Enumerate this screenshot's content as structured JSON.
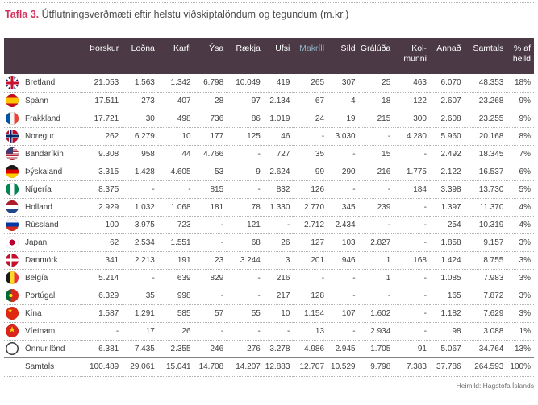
{
  "title": {
    "prefix": "Tafla 3.",
    "text": " Útflutningsverðmæti eftir helstu viðskiptalöndum og tegundum (m.kr.)"
  },
  "source": "Heimild: Hagstofa Íslands",
  "colors": {
    "header_bg": "#4b3a45",
    "title_accent": "#d4325c",
    "makrill_highlight": "#8db3c7",
    "body_text": "#414042"
  },
  "table": {
    "columns": [
      {
        "label": "",
        "id": "country"
      },
      {
        "label": "Þorskur",
        "id": "thorskur"
      },
      {
        "label": "Loðna",
        "id": "lodna"
      },
      {
        "label": "Karfi",
        "id": "karfi"
      },
      {
        "label": "Ýsa",
        "id": "ysa"
      },
      {
        "label": "Rækja",
        "id": "raekja"
      },
      {
        "label": "Ufsi",
        "id": "ufsi"
      },
      {
        "label": "Makríll",
        "id": "makrill",
        "highlight": true
      },
      {
        "label": "Síld",
        "id": "sild"
      },
      {
        "label": "Grálúða",
        "id": "graluda"
      },
      {
        "label": "Kol-\nmunni",
        "id": "kolmunni"
      },
      {
        "label": "Annað",
        "id": "annad"
      },
      {
        "label": "Samtals",
        "id": "samtals"
      },
      {
        "label": "% af\nheild",
        "id": "pct-af-heild"
      }
    ],
    "rows": [
      {
        "country": "Bretland",
        "flag": "gb",
        "values": [
          "21.053",
          "1.563",
          "1.342",
          "6.798",
          "10.049",
          "419",
          "265",
          "307",
          "25",
          "463",
          "6.070",
          "48.353",
          "18%"
        ]
      },
      {
        "country": "Spánn",
        "flag": "es",
        "values": [
          "17.511",
          "273",
          "407",
          "28",
          "97",
          "2.134",
          "67",
          "4",
          "18",
          "122",
          "2.607",
          "23.268",
          "9%"
        ]
      },
      {
        "country": "Frakkland",
        "flag": "fr",
        "values": [
          "17.721",
          "30",
          "498",
          "736",
          "86",
          "1.019",
          "24",
          "19",
          "215",
          "300",
          "2.608",
          "23.255",
          "9%"
        ]
      },
      {
        "country": "Noregur",
        "flag": "no",
        "values": [
          "262",
          "6.279",
          "10",
          "177",
          "125",
          "46",
          "-",
          "3.030",
          "-",
          "4.280",
          "5.960",
          "20.168",
          "8%"
        ]
      },
      {
        "country": "Bandaríkin",
        "flag": "us",
        "values": [
          "9.308",
          "958",
          "44",
          "4.766",
          "-",
          "727",
          "35",
          "-",
          "15",
          "-",
          "2.492",
          "18.345",
          "7%"
        ]
      },
      {
        "country": "Þýskaland",
        "flag": "de",
        "values": [
          "3.315",
          "1.428",
          "4.605",
          "53",
          "9",
          "2.624",
          "99",
          "290",
          "216",
          "1.775",
          "2.122",
          "16.537",
          "6%"
        ]
      },
      {
        "country": "Nígería",
        "flag": "ng",
        "values": [
          "8.375",
          "-",
          "-",
          "815",
          "-",
          "832",
          "126",
          "-",
          "-",
          "184",
          "3.398",
          "13.730",
          "5%"
        ]
      },
      {
        "country": "Holland",
        "flag": "nl",
        "values": [
          "2.929",
          "1.032",
          "1.068",
          "181",
          "78",
          "1.330",
          "2.770",
          "345",
          "239",
          "-",
          "1.397",
          "11.370",
          "4%"
        ]
      },
      {
        "country": "Rússland",
        "flag": "ru",
        "values": [
          "100",
          "3.975",
          "723",
          "-",
          "121",
          "-",
          "2.712",
          "2.434",
          "-",
          "-",
          "254",
          "10.319",
          "4%"
        ]
      },
      {
        "country": "Japan",
        "flag": "jp",
        "values": [
          "62",
          "2.534",
          "1.551",
          "-",
          "68",
          "26",
          "127",
          "103",
          "2.827",
          "-",
          "1.858",
          "9.157",
          "3%"
        ]
      },
      {
        "country": "Danmörk",
        "flag": "dk",
        "values": [
          "341",
          "2.213",
          "191",
          "23",
          "3.244",
          "3",
          "201",
          "946",
          "1",
          "168",
          "1.424",
          "8.755",
          "3%"
        ]
      },
      {
        "country": "Belgía",
        "flag": "be",
        "values": [
          "5.214",
          "-",
          "639",
          "829",
          "-",
          "216",
          "-",
          "-",
          "1",
          "-",
          "1.085",
          "7.983",
          "3%"
        ]
      },
      {
        "country": "Portúgal",
        "flag": "pt",
        "values": [
          "6.329",
          "35",
          "998",
          "-",
          "-",
          "217",
          "128",
          "-",
          "-",
          "-",
          "165",
          "7.872",
          "3%"
        ]
      },
      {
        "country": "Kína",
        "flag": "cn",
        "values": [
          "1.587",
          "1.291",
          "585",
          "57",
          "55",
          "10",
          "1.154",
          "107",
          "1.602",
          "-",
          "1.182",
          "7.629",
          "3%"
        ]
      },
      {
        "country": "Víetnam",
        "flag": "vn",
        "values": [
          "-",
          "17",
          "26",
          "-",
          "-",
          "-",
          "13",
          "-",
          "2.934",
          "-",
          "98",
          "3.088",
          "1%"
        ]
      },
      {
        "country": "Önnur lönd",
        "flag": "other",
        "values": [
          "6.381",
          "7.435",
          "2.355",
          "246",
          "276",
          "3.278",
          "4.986",
          "2.945",
          "1.705",
          "91",
          "5.067",
          "34.764",
          "13%"
        ]
      }
    ],
    "totals": {
      "label": "Samtals",
      "values": [
        "100.489",
        "29.061",
        "15.041",
        "14.708",
        "14.207",
        "12.883",
        "12.707",
        "10.529",
        "9.798",
        "7.383",
        "37.786",
        "264.593",
        "100%"
      ]
    }
  }
}
